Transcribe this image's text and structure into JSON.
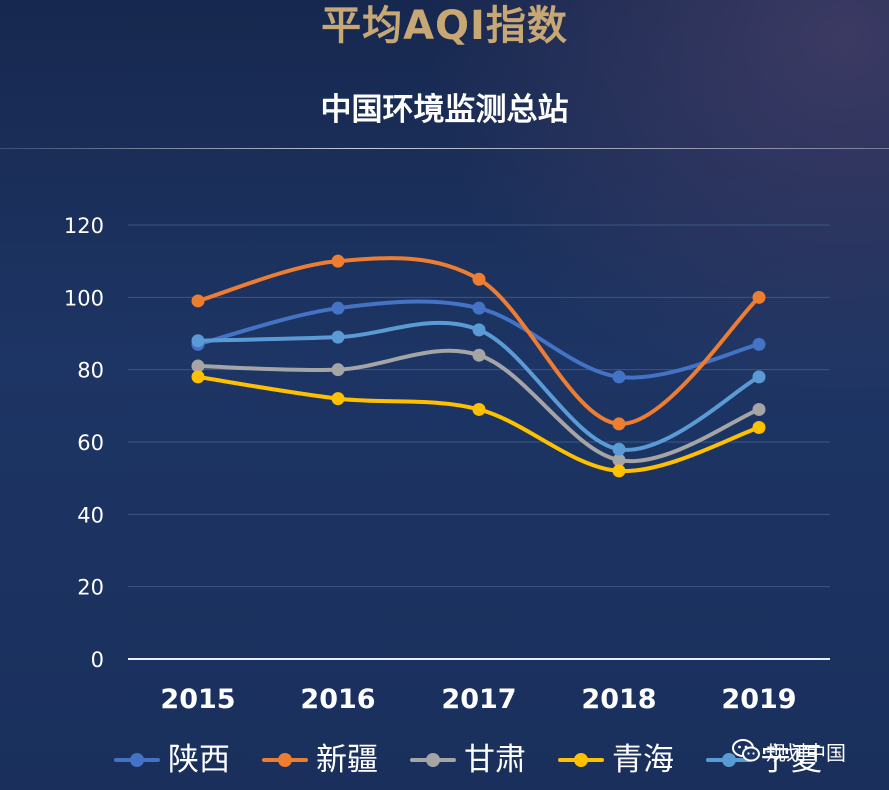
{
  "header": {
    "top_title": "平均AQI指数",
    "subtitle": "中国环境监测总站"
  },
  "watermark": {
    "text": "规划中国",
    "icon": "wechat-icon"
  },
  "colors": {
    "title_gold": "#c7a874",
    "gridline": "#3a5688",
    "axis_text": "#ffffff"
  },
  "chart_data": {
    "type": "line",
    "categories": [
      "2015",
      "2016",
      "2017",
      "2018",
      "2019"
    ],
    "yticks": [
      "0",
      "20",
      "40",
      "60",
      "80",
      "100",
      "120"
    ],
    "ylim": [
      0,
      120
    ],
    "grid": true,
    "legend_position": "bottom",
    "smooth": true,
    "series": [
      {
        "name": "陕西",
        "color": "#4472c4",
        "values": [
          87,
          97,
          97,
          78,
          87
        ]
      },
      {
        "name": "新疆",
        "color": "#ed7d31",
        "values": [
          99,
          110,
          105,
          65,
          100
        ]
      },
      {
        "name": "甘肃",
        "color": "#a5a5a5",
        "values": [
          81,
          80,
          84,
          55,
          69
        ]
      },
      {
        "name": "青海",
        "color": "#ffc000",
        "values": [
          78,
          72,
          69,
          52,
          64
        ]
      },
      {
        "name": "宁夏",
        "color": "#5b9bd5",
        "values": [
          88,
          89,
          91,
          58,
          78
        ]
      }
    ]
  }
}
